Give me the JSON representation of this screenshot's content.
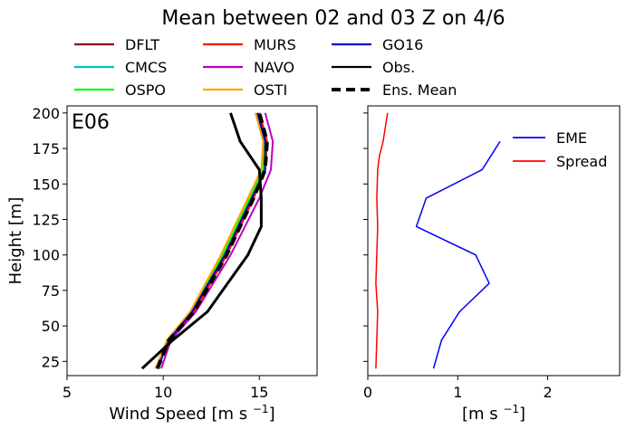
{
  "chart_data": [
    {
      "type": "line",
      "title": "Mean between 02 and 03 Z on 4/6",
      "panel_label": "E06",
      "xlabel": "Wind Speed [m s",
      "xlabel_sup": "−1",
      "xlabel_end": "]",
      "ylabel": "Height [m]",
      "xlim": [
        5,
        18
      ],
      "ylim": [
        15,
        205
      ],
      "xticks": [
        5,
        10,
        15
      ],
      "yticks": [
        25,
        50,
        75,
        100,
        125,
        150,
        175,
        200
      ],
      "legend_position": "top",
      "series": [
        {
          "name": "DFLT",
          "color": "#8b0000",
          "width": 2,
          "dash": "",
          "x": [
            9.7,
            10.3,
            11.6,
            13.3,
            14.7,
            15.3,
            15.4,
            15.0
          ],
          "y": [
            20,
            40,
            60,
            100,
            140,
            160,
            180,
            200
          ]
        },
        {
          "name": "CMCS",
          "color": "#00bfbf",
          "width": 2,
          "dash": "",
          "x": [
            9.6,
            10.2,
            11.5,
            13.2,
            14.6,
            15.2,
            15.3,
            14.9
          ],
          "y": [
            20,
            40,
            60,
            100,
            140,
            160,
            180,
            200
          ]
        },
        {
          "name": "OSPO",
          "color": "#00ff00",
          "width": 2,
          "dash": "",
          "x": [
            9.6,
            10.2,
            11.4,
            13.1,
            14.5,
            15.2,
            15.2,
            14.8
          ],
          "y": [
            20,
            40,
            60,
            100,
            140,
            160,
            180,
            200
          ]
        },
        {
          "name": "MURS",
          "color": "#ff0000",
          "width": 2,
          "dash": "",
          "x": [
            9.7,
            10.3,
            11.6,
            13.3,
            14.7,
            15.3,
            15.4,
            15.0
          ],
          "y": [
            20,
            40,
            60,
            100,
            140,
            160,
            180,
            200
          ]
        },
        {
          "name": "NAVO",
          "color": "#bf00bf",
          "width": 2,
          "dash": "",
          "x": [
            9.9,
            10.4,
            11.7,
            13.5,
            15.0,
            15.6,
            15.7,
            15.3
          ],
          "y": [
            20,
            40,
            60,
            100,
            140,
            160,
            180,
            200
          ]
        },
        {
          "name": "OSTI",
          "color": "#ffa500",
          "width": 2,
          "dash": "",
          "x": [
            9.6,
            10.2,
            11.4,
            13.0,
            14.4,
            15.1,
            15.2,
            14.8
          ],
          "y": [
            20,
            40,
            60,
            100,
            140,
            160,
            180,
            200
          ]
        },
        {
          "name": "GO16",
          "color": "#0000cd",
          "width": 2,
          "dash": "",
          "x": [
            9.7,
            10.3,
            11.5,
            13.2,
            14.6,
            15.3,
            15.3,
            14.9
          ],
          "y": [
            20,
            40,
            60,
            100,
            140,
            160,
            180,
            200
          ]
        },
        {
          "name": "Obs.",
          "color": "#000000",
          "width": 3,
          "dash": "",
          "x": [
            8.9,
            10.5,
            12.3,
            14.4,
            15.1,
            15.1,
            15.0,
            14.0,
            13.5
          ],
          "y": [
            20,
            40,
            60,
            100,
            120,
            140,
            160,
            180,
            200
          ]
        },
        {
          "name": "Ens. Mean",
          "color": "#000000",
          "width": 4,
          "dash": "10,6",
          "x": [
            9.7,
            10.3,
            11.6,
            13.3,
            14.7,
            15.3,
            15.4,
            15.0
          ],
          "y": [
            20,
            40,
            60,
            100,
            140,
            160,
            180,
            200
          ]
        }
      ]
    },
    {
      "type": "line",
      "xlabel": "[m s",
      "xlabel_sup": "−1",
      "xlabel_end": "]",
      "xlim": [
        0,
        2.8
      ],
      "ylim": [
        15,
        205
      ],
      "xticks": [
        0,
        1,
        2
      ],
      "legend_position": "top-right",
      "series": [
        {
          "name": "EME",
          "color": "#0000ff",
          "width": 1.5,
          "x": [
            0.73,
            0.82,
            1.02,
            1.35,
            1.2,
            0.54,
            0.65,
            1.27,
            1.47
          ],
          "y": [
            20,
            40,
            60,
            80,
            100,
            120,
            140,
            160,
            180
          ]
        },
        {
          "name": "Spread",
          "color": "#ff0000",
          "width": 1.5,
          "x": [
            0.09,
            0.1,
            0.11,
            0.09,
            0.1,
            0.11,
            0.1,
            0.11,
            0.13,
            0.17,
            0.22
          ],
          "y": [
            20,
            40,
            60,
            80,
            100,
            120,
            140,
            160,
            170,
            180,
            200
          ]
        }
      ]
    }
  ]
}
